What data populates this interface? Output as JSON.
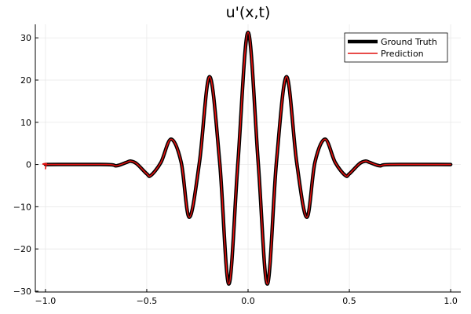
{
  "chart_data": {
    "type": "line",
    "title": "u'(x,t)",
    "xlabel": "",
    "ylabel": "",
    "xlim": [
      -1.05,
      1.05
    ],
    "ylim": [
      -30.2,
      33.2
    ],
    "xticks": [
      -1.0,
      -0.5,
      0.0,
      0.5,
      1.0
    ],
    "xtick_labels": [
      "−1.0",
      "−0.5",
      "0.0",
      "0.5",
      "1.0"
    ],
    "yticks": [
      -30,
      -20,
      -10,
      0,
      10,
      20,
      30
    ],
    "ytick_labels": [
      "−30",
      "−20",
      "−10",
      "0",
      "10",
      "20",
      "30"
    ],
    "grid": true,
    "legend_position": "top-right",
    "x_range": [
      -1.0,
      1.0
    ],
    "series": [
      {
        "name": "Ground Truth",
        "color": "#000000",
        "style": "thick-solid",
        "x": [
          -1.0,
          -0.7,
          -0.65,
          -0.6,
          -0.58,
          -0.55,
          -0.5,
          -0.48,
          -0.43,
          -0.38,
          -0.33,
          -0.29,
          -0.24,
          -0.19,
          -0.14,
          -0.095,
          -0.05,
          0.0,
          0.05,
          0.095,
          0.14,
          0.19,
          0.24,
          0.29,
          0.33,
          0.38,
          0.43,
          0.48,
          0.5,
          0.55,
          0.58,
          0.6,
          0.65,
          0.7,
          1.0
        ],
        "y": [
          0,
          0,
          -0.3,
          0.5,
          0.8,
          0.2,
          -2.2,
          -2.6,
          0.5,
          6.0,
          0.5,
          -12.5,
          0.5,
          20.8,
          0.5,
          -28.3,
          0.5,
          31.3,
          0.5,
          -28.3,
          0.5,
          20.8,
          0.5,
          -12.5,
          0.5,
          6.0,
          0.5,
          -2.6,
          -2.2,
          0.2,
          0.8,
          0.5,
          -0.3,
          0,
          0
        ]
      },
      {
        "name": "Prediction",
        "color": "#e0110f",
        "style": "solid",
        "x": [
          -1.0,
          -0.995,
          -0.99,
          -0.7,
          -0.65,
          -0.6,
          -0.58,
          -0.55,
          -0.5,
          -0.48,
          -0.43,
          -0.38,
          -0.33,
          -0.29,
          -0.24,
          -0.19,
          -0.14,
          -0.095,
          -0.05,
          0.0,
          0.05,
          0.095,
          0.14,
          0.19,
          0.24,
          0.29,
          0.33,
          0.38,
          0.43,
          0.48,
          0.5,
          0.55,
          0.58,
          0.6,
          0.65,
          0.7,
          1.0
        ],
        "y": [
          -1.0,
          0.2,
          0,
          0,
          -0.3,
          0.5,
          0.8,
          0.2,
          -2.2,
          -2.6,
          0.5,
          6.0,
          0.5,
          -12.5,
          0.5,
          20.8,
          0.5,
          -28.3,
          0.5,
          31.3,
          0.5,
          -28.3,
          0.5,
          20.8,
          0.5,
          -12.5,
          0.5,
          6.0,
          0.5,
          -2.6,
          -2.2,
          0.2,
          0.8,
          0.5,
          -0.3,
          0,
          0
        ]
      }
    ]
  }
}
